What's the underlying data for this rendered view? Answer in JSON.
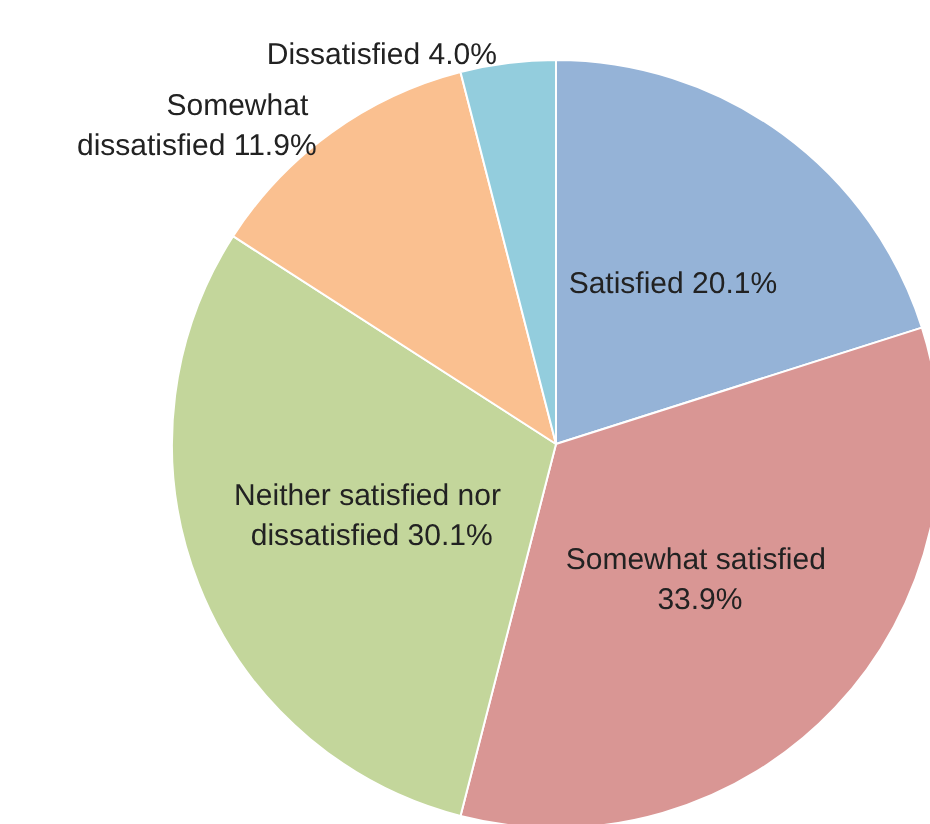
{
  "chart_data": {
    "type": "pie",
    "categories": [
      "Satisfied",
      "Somewhat satisfied",
      "Neither satisfied nor dissatisfied",
      "Somewhat dissatisfied",
      "Dissatisfied"
    ],
    "values": [
      20.1,
      33.9,
      30.1,
      11.9,
      4.0
    ],
    "value_labels": [
      "20.1%",
      "33.9%",
      "30.1%",
      "11.9%",
      "4.0%"
    ],
    "colors": [
      "#95b3d7",
      "#d99694",
      "#c3d69b",
      "#fac090",
      "#93cddd"
    ]
  }
}
